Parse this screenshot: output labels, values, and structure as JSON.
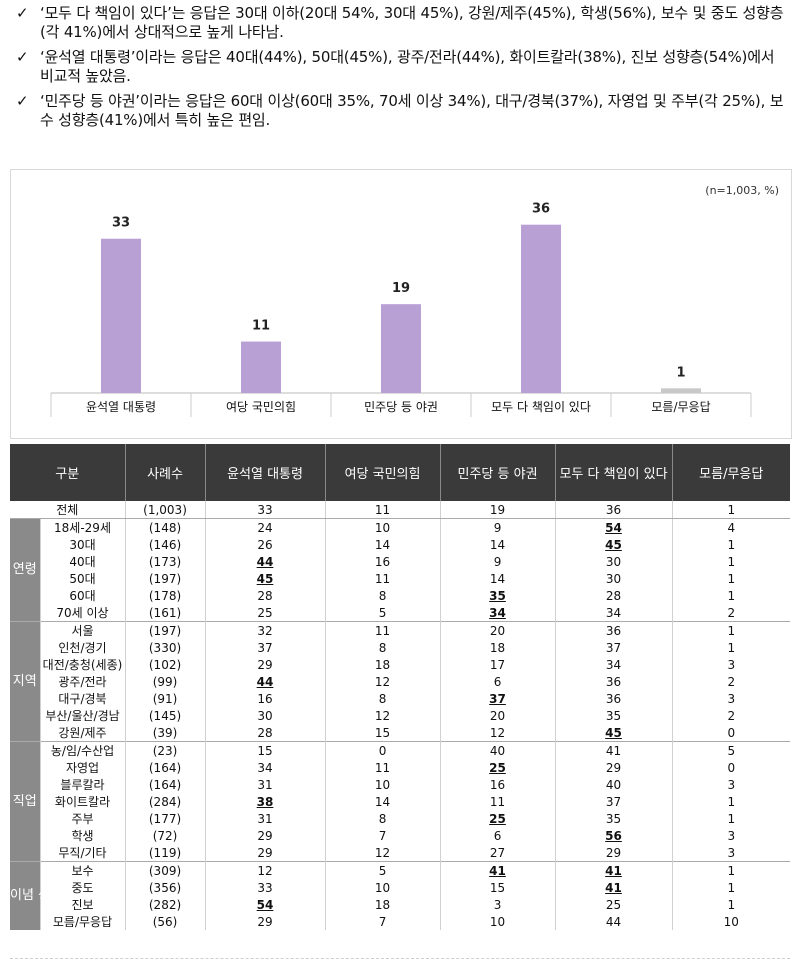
{
  "bullets": [
    "‘모두 다 책임이 있다’는 응답은 30대 이하(20대 54%, 30대 45%), 강원/제주(45%), 학생(56%), 보수 및 중도 성향층(각 41%)에서 상대적으로 높게 나타남.",
    "‘윤석열 대통령’이라는 응답은 40대(44%), 50대(45%), 광주/전라(44%), 화이트칼라(38%), 진보 성향층(54%)에서 비교적 높았음.",
    "‘민주당 등 야권’이라는 응답은 60대 이상(60대 35%, 70세 이상 34%), 대구/경북(37%), 자영업 및 주부(각 25%), 보수 성향층(41%)에서 특히 높은 편임."
  ],
  "check_symbol": "✓",
  "note": "(n=1,003, %)",
  "chart_data": {
    "type": "bar",
    "categories": [
      "윤석열 대통령",
      "여당 국민의힘",
      "민주당 등 야권",
      "모두 다 책임이 있다",
      "모름/무응답"
    ],
    "values": [
      33,
      11,
      19,
      36,
      1
    ],
    "ylim": [
      0,
      40
    ],
    "colors": [
      "#b8a0d4",
      "#b8a0d4",
      "#b8a0d4",
      "#b8a0d4",
      "#c8c8c8"
    ],
    "grid": false,
    "legend": "none"
  },
  "table": {
    "headers": [
      "구분",
      "사례수",
      "윤석열 대통령",
      "여당 국민의힘",
      "민주당 등 야권",
      "모두 다 책임이 있다",
      "모름/무응답"
    ],
    "total": {
      "label": "전체",
      "cells": [
        "(1,003)",
        "33",
        "11",
        "19",
        "36",
        "1"
      ]
    },
    "groups": [
      {
        "name": "연령",
        "rows": [
          {
            "label": "18세-29세",
            "cells": [
              "(148)",
              "24",
              "10",
              "9",
              "54",
              "4"
            ],
            "hl": [
              3
            ]
          },
          {
            "label": "30대",
            "cells": [
              "(146)",
              "26",
              "14",
              "14",
              "45",
              "1"
            ],
            "hl": [
              3
            ]
          },
          {
            "label": "40대",
            "cells": [
              "(173)",
              "44",
              "16",
              "9",
              "30",
              "1"
            ],
            "hl": [
              0
            ]
          },
          {
            "label": "50대",
            "cells": [
              "(197)",
              "45",
              "11",
              "14",
              "30",
              "1"
            ],
            "hl": [
              0
            ]
          },
          {
            "label": "60대",
            "cells": [
              "(178)",
              "28",
              "8",
              "35",
              "28",
              "1"
            ],
            "hl": [
              2
            ]
          },
          {
            "label": "70세 이상",
            "cells": [
              "(161)",
              "25",
              "5",
              "34",
              "34",
              "2"
            ],
            "hl": [
              2
            ]
          }
        ]
      },
      {
        "name": "지역",
        "rows": [
          {
            "label": "서울",
            "cells": [
              "(197)",
              "32",
              "11",
              "20",
              "36",
              "1"
            ],
            "hl": []
          },
          {
            "label": "인천/경기",
            "cells": [
              "(330)",
              "37",
              "8",
              "18",
              "37",
              "1"
            ],
            "hl": []
          },
          {
            "label": "대전/충청(세종)",
            "cells": [
              "(102)",
              "29",
              "18",
              "17",
              "34",
              "3"
            ],
            "hl": []
          },
          {
            "label": "광주/전라",
            "cells": [
              "(99)",
              "44",
              "12",
              "6",
              "36",
              "2"
            ],
            "hl": [
              0
            ]
          },
          {
            "label": "대구/경북",
            "cells": [
              "(91)",
              "16",
              "8",
              "37",
              "36",
              "3"
            ],
            "hl": [
              2
            ]
          },
          {
            "label": "부산/울산/경남",
            "cells": [
              "(145)",
              "30",
              "12",
              "20",
              "35",
              "2"
            ],
            "hl": []
          },
          {
            "label": "강원/제주",
            "cells": [
              "(39)",
              "28",
              "15",
              "12",
              "45",
              "0"
            ],
            "hl": [
              3
            ]
          }
        ]
      },
      {
        "name": "직업",
        "rows": [
          {
            "label": "농/임/수산업",
            "cells": [
              "(23)",
              "15",
              "0",
              "40",
              "41",
              "5"
            ],
            "hl": []
          },
          {
            "label": "자영업",
            "cells": [
              "(164)",
              "34",
              "11",
              "25",
              "29",
              "0"
            ],
            "hl": [
              2
            ]
          },
          {
            "label": "블루칼라",
            "cells": [
              "(164)",
              "31",
              "10",
              "16",
              "40",
              "3"
            ],
            "hl": []
          },
          {
            "label": "화이트칼라",
            "cells": [
              "(284)",
              "38",
              "14",
              "11",
              "37",
              "1"
            ],
            "hl": [
              0
            ]
          },
          {
            "label": "주부",
            "cells": [
              "(177)",
              "31",
              "8",
              "25",
              "35",
              "1"
            ],
            "hl": [
              2
            ]
          },
          {
            "label": "학생",
            "cells": [
              "(72)",
              "29",
              "7",
              "6",
              "56",
              "3"
            ],
            "hl": [
              3
            ]
          },
          {
            "label": "무직/기타",
            "cells": [
              "(119)",
              "29",
              "12",
              "27",
              "29",
              "3"
            ],
            "hl": []
          }
        ]
      },
      {
        "name": "이념 성향",
        "rows": [
          {
            "label": "보수",
            "cells": [
              "(309)",
              "12",
              "5",
              "41",
              "41",
              "1"
            ],
            "hl": [
              2,
              3
            ]
          },
          {
            "label": "중도",
            "cells": [
              "(356)",
              "33",
              "10",
              "15",
              "41",
              "1"
            ],
            "hl": [
              3
            ]
          },
          {
            "label": "진보",
            "cells": [
              "(282)",
              "54",
              "18",
              "3",
              "25",
              "1"
            ],
            "hl": [
              0
            ]
          },
          {
            "label": "모름/무응답",
            "cells": [
              "(56)",
              "29",
              "7",
              "10",
              "44",
              "10"
            ],
            "hl": []
          }
        ]
      }
    ]
  }
}
